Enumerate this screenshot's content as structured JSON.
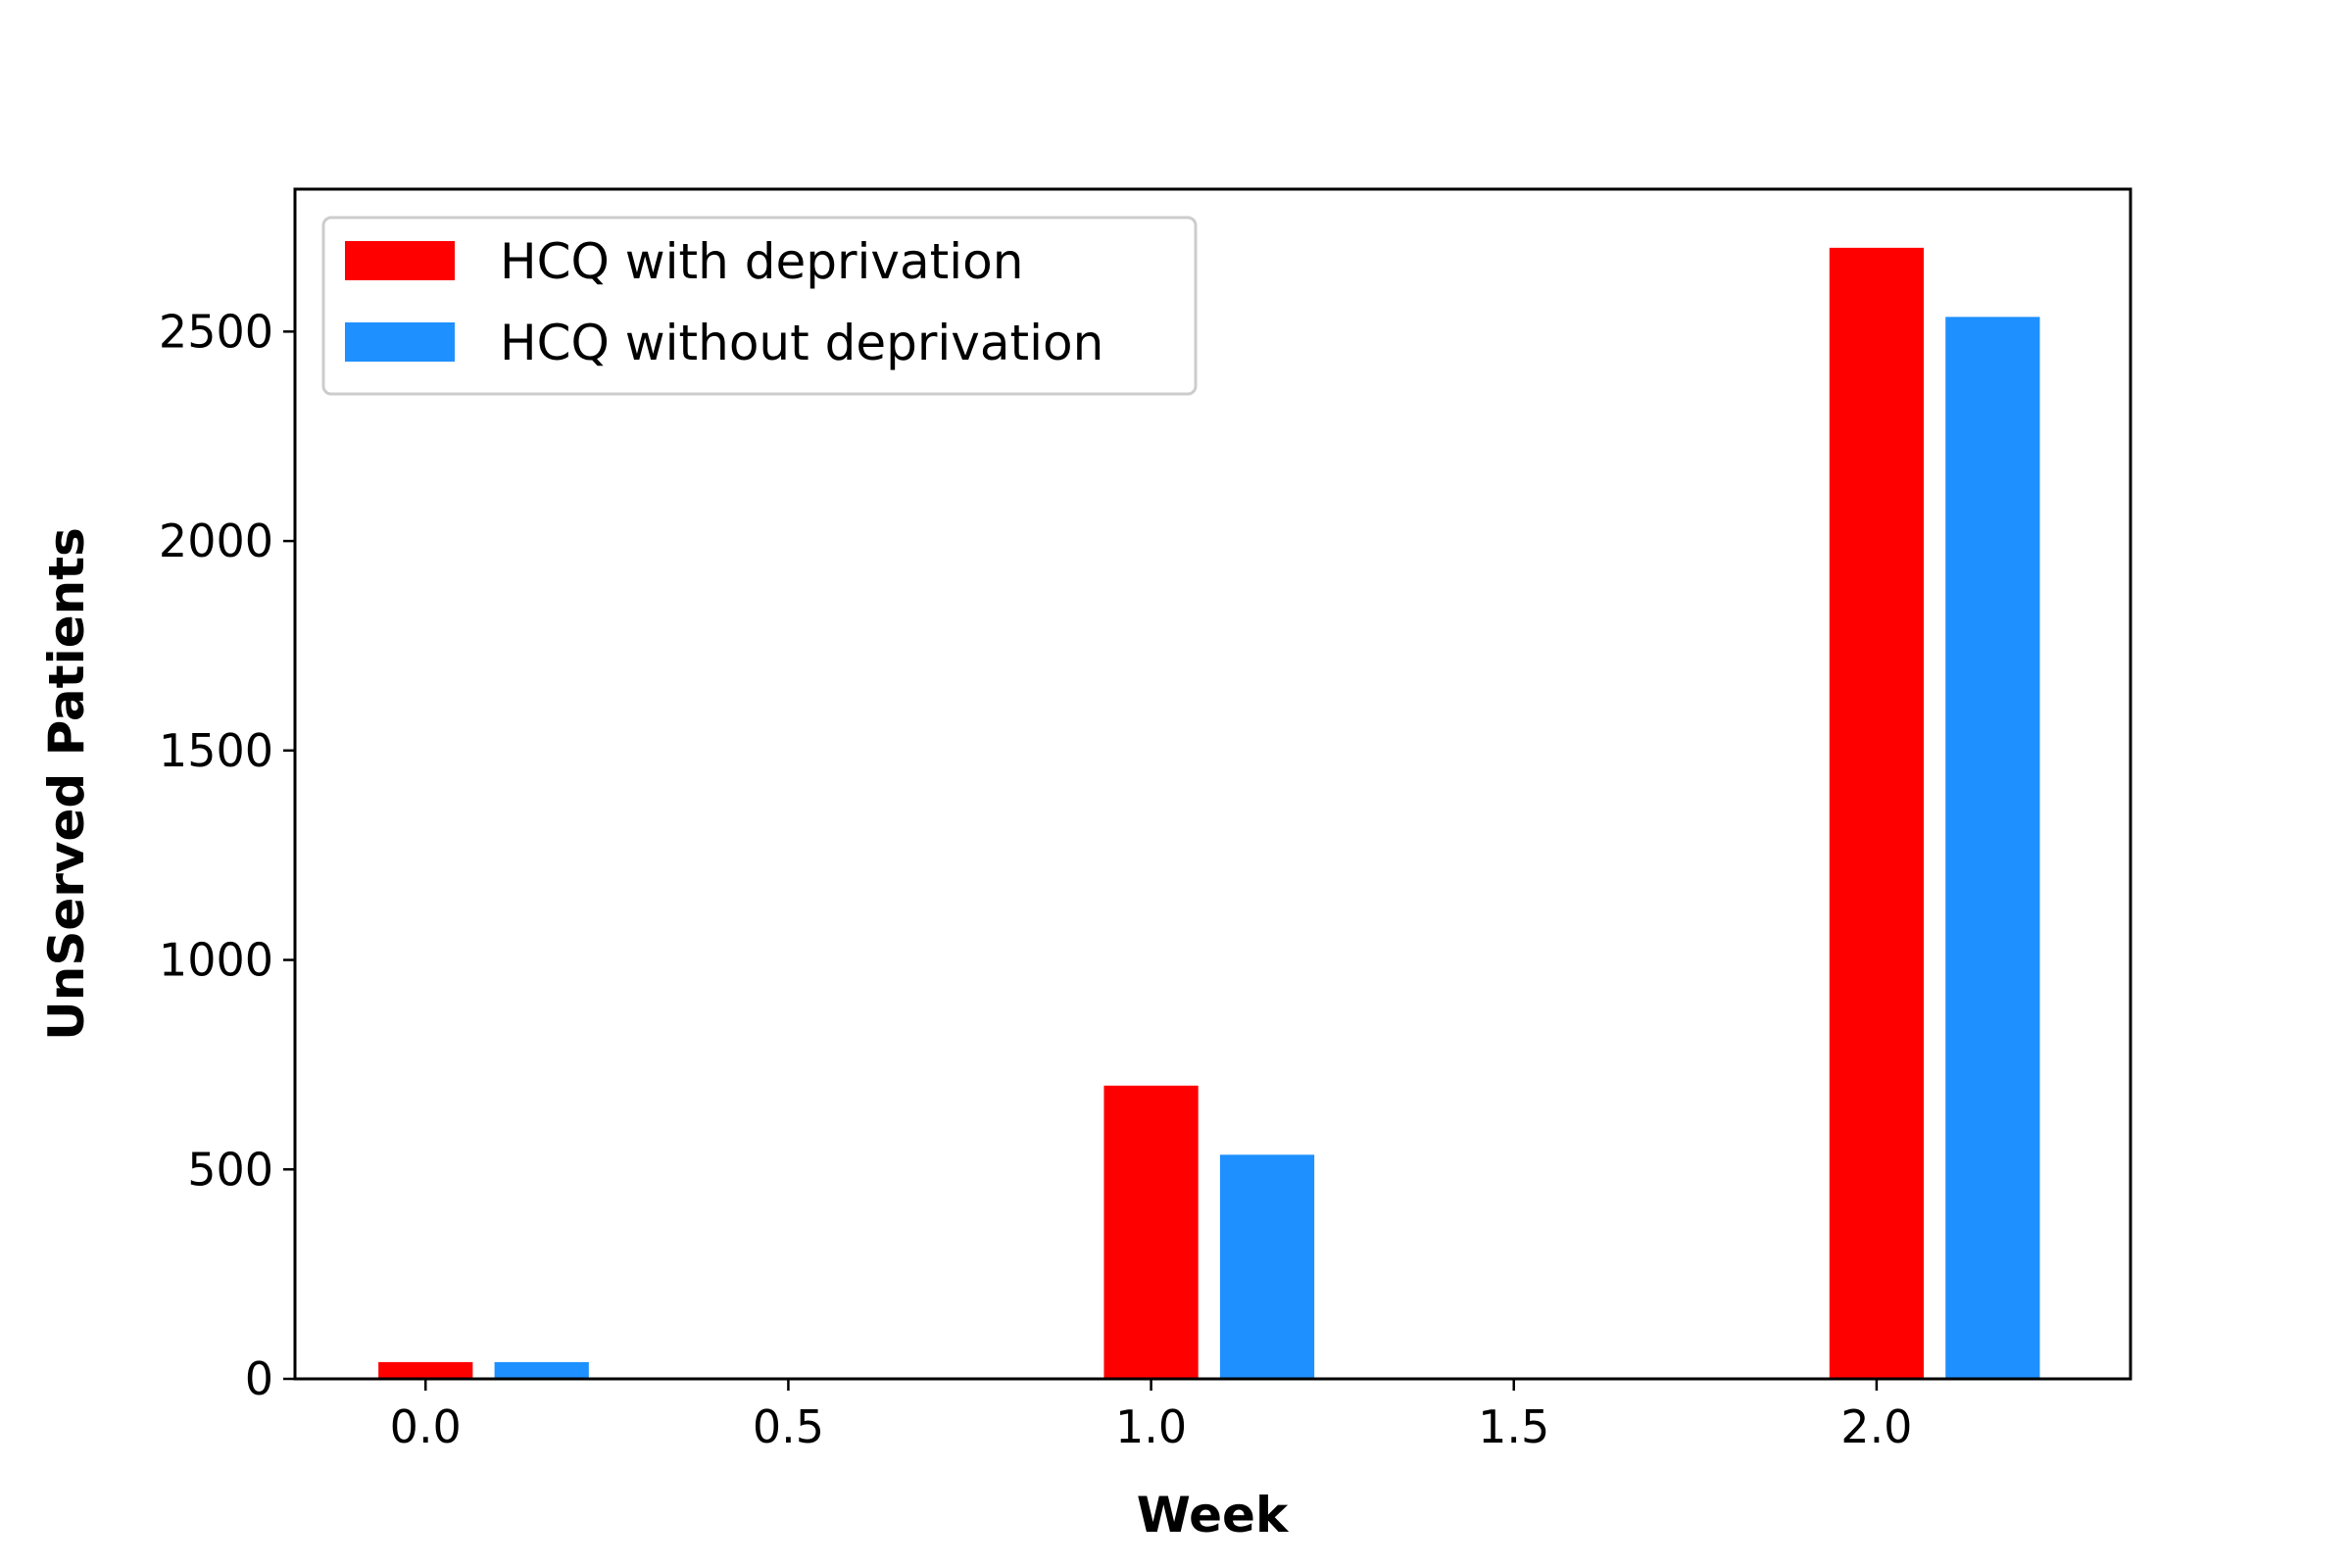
{
  "chart_data": {
    "type": "bar",
    "xlabel": "Week",
    "ylabel": "UnServed Patients",
    "xlim": [
      -0.18,
      2.35
    ],
    "ylim": [
      0,
      2840
    ],
    "xticks": [
      "0.0",
      "0.5",
      "1.0",
      "1.5",
      "2.0"
    ],
    "xtick_values": [
      0.0,
      0.5,
      1.0,
      1.5,
      2.0
    ],
    "yticks": [
      "0",
      "500",
      "1000",
      "1500",
      "2000",
      "2500"
    ],
    "ytick_values": [
      0,
      500,
      1000,
      1500,
      2000,
      2500
    ],
    "grid": false,
    "legend_position": "top-left",
    "categories": [
      0,
      1,
      2
    ],
    "bar_width": 0.13,
    "series": [
      {
        "name": "HCQ with deprivation",
        "color": "#ff0000",
        "offset": 0.0,
        "values": [
          40,
          700,
          2700
        ]
      },
      {
        "name": "HCQ without deprivation",
        "color": "#1e90ff",
        "offset": 0.16,
        "values": [
          40,
          535,
          2535
        ]
      }
    ]
  }
}
